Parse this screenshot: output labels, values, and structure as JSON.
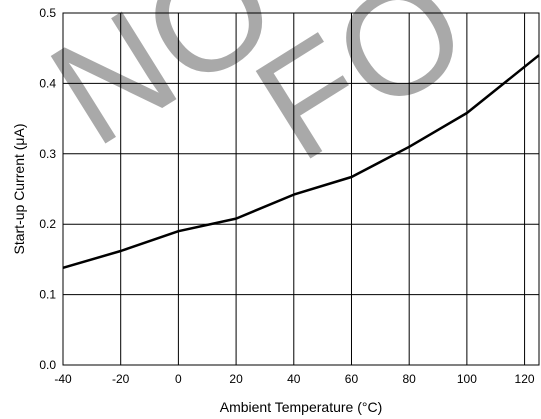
{
  "watermark": {
    "text_left": "NO",
    "text_right": "FO"
  },
  "chart_data": {
    "type": "line",
    "x": [
      -40,
      -20,
      0,
      20,
      40,
      60,
      80,
      100,
      125
    ],
    "series": [
      {
        "values": [
          0.138,
          0.162,
          0.19,
          0.208,
          0.242,
          0.267,
          0.31,
          0.358,
          0.44
        ]
      }
    ],
    "xlim": [
      -40,
      125
    ],
    "ylim": [
      0.0,
      0.5
    ],
    "xticks": [
      "-40",
      "-20",
      "0",
      "20",
      "40",
      "60",
      "80",
      "100",
      "120"
    ],
    "yticks": [
      "0.0",
      "0.1",
      "0.2",
      "0.3",
      "0.4",
      "0.5"
    ],
    "xlabel": "Ambient Temperature (°C)",
    "ylabel": "Start-up Current (μA)",
    "grid": true
  }
}
